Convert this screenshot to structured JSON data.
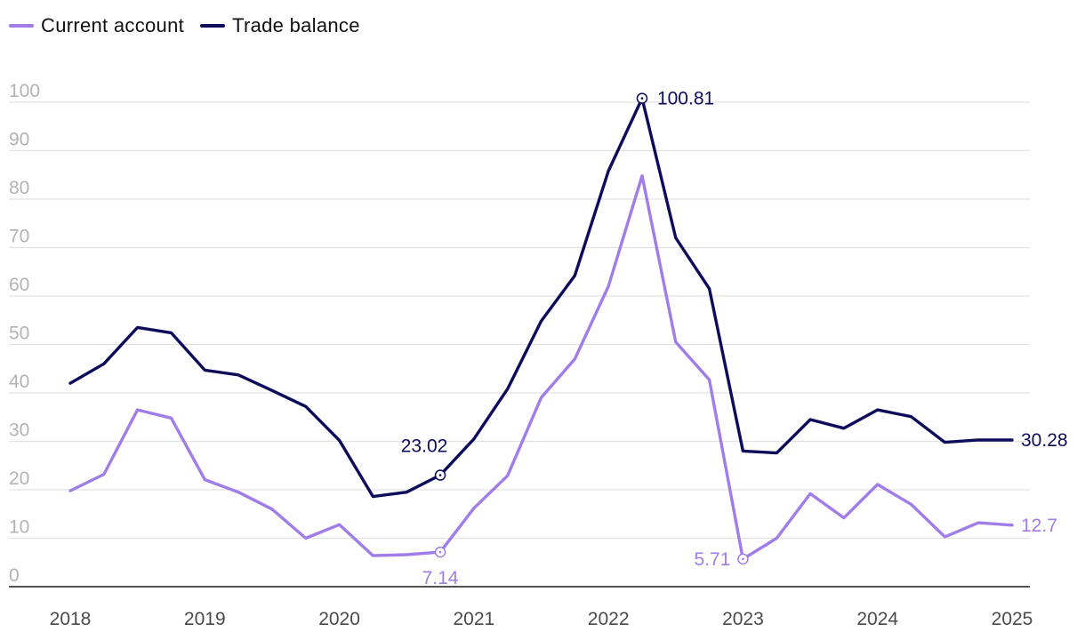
{
  "chart_data": {
    "type": "line",
    "title": "",
    "xlabel": "",
    "ylabel": "",
    "ylim": [
      0,
      100
    ],
    "yticks": [
      0,
      10,
      20,
      30,
      40,
      50,
      60,
      70,
      80,
      90,
      100
    ],
    "xlim": [
      2018,
      2025
    ],
    "xticks": [
      "2018",
      "2019",
      "2020",
      "2021",
      "2022",
      "2023",
      "2024",
      "2025"
    ],
    "legend": "top-left",
    "grid": true,
    "x": [
      2018.0,
      2018.25,
      2018.5,
      2018.75,
      2019.0,
      2019.25,
      2019.5,
      2019.75,
      2020.0,
      2020.25,
      2020.5,
      2020.75,
      2021.0,
      2021.25,
      2021.5,
      2021.75,
      2022.0,
      2022.25,
      2022.5,
      2022.75,
      2023.0,
      2023.25,
      2023.5,
      2023.75,
      2024.0,
      2024.25,
      2024.5,
      2024.75,
      2025.0
    ],
    "series": [
      {
        "name": "Current account",
        "color": "#a07de8",
        "values": [
          19.8,
          23.2,
          36.5,
          34.8,
          22.1,
          19.5,
          16.0,
          10.0,
          12.8,
          6.4,
          6.6,
          7.14,
          16.2,
          22.9,
          39.0,
          47.0,
          62.0,
          84.8,
          50.5,
          42.7,
          5.71,
          10.0,
          19.2,
          14.2,
          21.1,
          17.0,
          10.3,
          13.2,
          12.7
        ]
      },
      {
        "name": "Trade balance",
        "color": "#0c0c5a",
        "values": [
          42.0,
          46.0,
          53.5,
          52.4,
          44.7,
          43.7,
          40.5,
          37.2,
          30.2,
          18.6,
          19.5,
          23.02,
          30.5,
          40.8,
          54.8,
          64.2,
          85.8,
          100.81,
          72.0,
          61.5,
          28.0,
          27.6,
          34.5,
          32.7,
          36.5,
          35.1,
          29.8,
          30.3,
          30.28
        ]
      }
    ],
    "annotations": [
      {
        "series": 1,
        "index": 11,
        "label": "23.02",
        "marker": true,
        "position": "above"
      },
      {
        "series": 1,
        "index": 17,
        "label": "100.81",
        "marker": true,
        "position": "right"
      },
      {
        "series": 1,
        "index": 28,
        "label": "30.28",
        "marker": false,
        "position": "right"
      },
      {
        "series": 0,
        "index": 11,
        "label": "7.14",
        "marker": true,
        "position": "below"
      },
      {
        "series": 0,
        "index": 20,
        "label": "5.71",
        "marker": true,
        "position": "left"
      },
      {
        "series": 0,
        "index": 28,
        "label": "12.7",
        "marker": false,
        "position": "right"
      }
    ]
  }
}
